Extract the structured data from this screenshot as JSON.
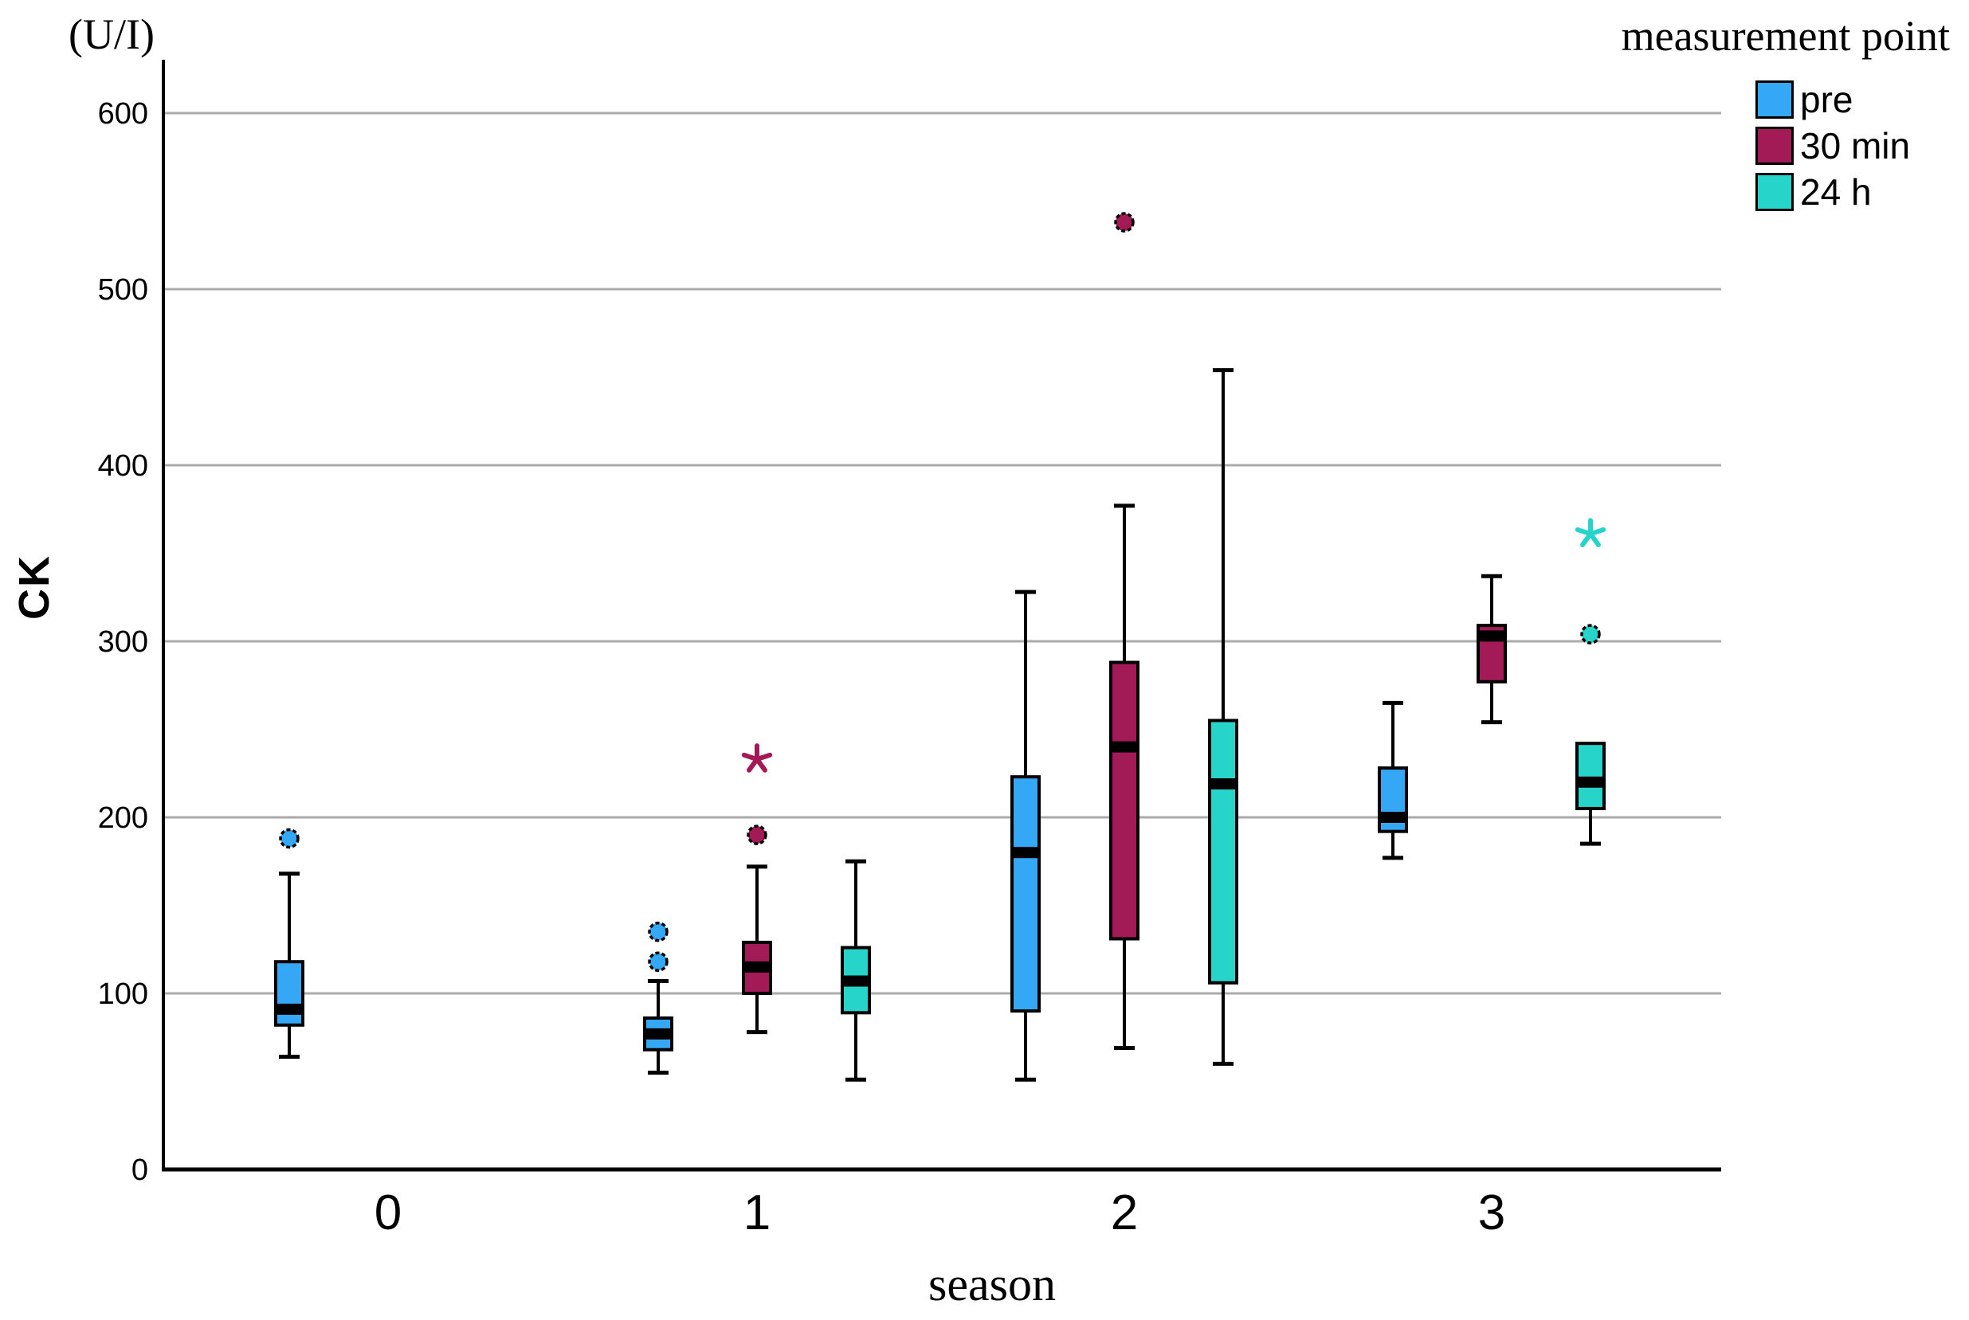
{
  "labels": {
    "y_unit": "(U/I)",
    "y_title": "CK",
    "x_title": "season",
    "legend_title": "measurement point"
  },
  "legend": {
    "title": "measurement point",
    "position": "top-right",
    "items": [
      {
        "label": "pre",
        "color": "#35A8F5",
        "swatch": "blue-square"
      },
      {
        "label": "30 min",
        "color": "#A21A56",
        "swatch": "maroon-square"
      },
      {
        "label": "24 h",
        "color": "#27D4CA",
        "swatch": "teal-square"
      }
    ]
  },
  "chart_data": {
    "type": "boxplot",
    "title": "",
    "xlabel": "season",
    "ylabel": "CK",
    "y_unit": "(U/I)",
    "ylim": [
      0,
      620
    ],
    "yticks": [
      "0",
      "100",
      "200",
      "300",
      "400",
      "500",
      "600"
    ],
    "categories": [
      "0",
      "1",
      "2",
      "3"
    ],
    "grid": true,
    "gridline_color": "#ABABAB",
    "axis_color": "#000000",
    "legend_position": "top-right",
    "series": [
      {
        "name": "pre",
        "color": "#35A8F5",
        "boxes": [
          {
            "category": "0",
            "min": 64,
            "q1": 82,
            "median": 91,
            "q3": 118,
            "max": 168,
            "outliers": [
              188
            ],
            "extremes": []
          },
          {
            "category": "1",
            "min": 55,
            "q1": 68,
            "median": 77,
            "q3": 86,
            "max": 107,
            "outliers": [
              118,
              135
            ],
            "extremes": []
          },
          {
            "category": "2",
            "min": 51,
            "q1": 90,
            "median": 180,
            "q3": 223,
            "max": 328,
            "outliers": [],
            "extremes": []
          },
          {
            "category": "3",
            "min": 177,
            "q1": 192,
            "median": 200,
            "q3": 228,
            "max": 265,
            "outliers": [],
            "extremes": []
          }
        ]
      },
      {
        "name": "30 min",
        "color": "#A21A56",
        "boxes": [
          {
            "category": "1",
            "min": 78,
            "q1": 100,
            "median": 115,
            "q3": 129,
            "max": 172,
            "outliers": [
              190
            ],
            "extremes": [
              233
            ]
          },
          {
            "category": "2",
            "min": 69,
            "q1": 131,
            "median": 240,
            "q3": 288,
            "max": 377,
            "outliers": [
              538
            ],
            "extremes": []
          },
          {
            "category": "3",
            "min": 254,
            "q1": 277,
            "median": 303,
            "q3": 309,
            "max": 337,
            "outliers": [],
            "extremes": []
          }
        ]
      },
      {
        "name": "24 h",
        "color": "#27D4CA",
        "boxes": [
          {
            "category": "1",
            "min": 51,
            "q1": 89,
            "median": 107,
            "q3": 126,
            "max": 175,
            "outliers": [],
            "extremes": []
          },
          {
            "category": "2",
            "min": 60,
            "q1": 106,
            "median": 219,
            "q3": 255,
            "max": 454,
            "outliers": [],
            "extremes": []
          },
          {
            "category": "3",
            "min": 185,
            "q1": 205,
            "median": 220,
            "q3": 242,
            "max": 242,
            "outliers": [
              304
            ],
            "extremes": [
              361
            ]
          }
        ]
      }
    ]
  }
}
